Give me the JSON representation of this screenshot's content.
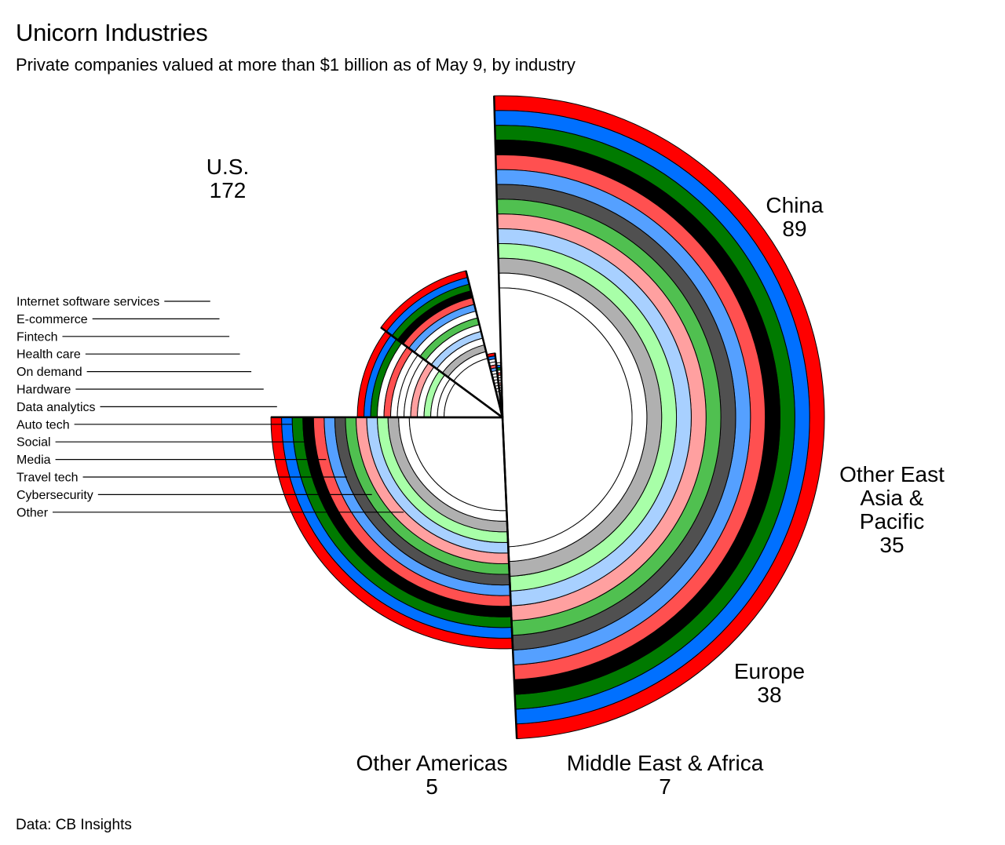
{
  "header": {
    "title": "Unicorn Industries",
    "subtitle": "Private companies valued at more than $1 billion as of May 9, by industry"
  },
  "footer": {
    "source": "Data: CB Insights"
  },
  "colors": {
    "Internet software services": "#ff0000",
    "E-commerce": "#0070ff",
    "Fintech": "#007a00",
    "Health care": "#000000",
    "On demand": "#ff5050",
    "Hardware": "#55a0ff",
    "Data analytics": "#505050",
    "Auto tech": "#50c050",
    "Social": "#ffa0a0",
    "Media": "#a8d0ff",
    "Travel tech": "#a8ffa8",
    "Cybersecurity": "#b0b0b0",
    "Other": "#ffffff"
  },
  "chart_data": {
    "type": "radial-bar",
    "title": "Unicorn Industries",
    "subtitle": "Private companies valued at more than $1 billion as of May 9, by industry",
    "industries": [
      "Internet software services",
      "E-commerce",
      "Fintech",
      "Health care",
      "On demand",
      "Hardware",
      "Data analytics",
      "Auto tech",
      "Social",
      "Media",
      "Travel tech",
      "Cybersecurity",
      "Other"
    ],
    "regions": [
      {
        "name": "U.S.",
        "total": "172",
        "label_lines": [
          "U.S.",
          "172"
        ],
        "values": [
          37,
          11,
          21,
          23,
          5,
          6,
          8,
          11,
          7,
          9,
          5,
          6,
          23
        ]
      },
      {
        "name": "China",
        "total": "89",
        "label_lines": [
          "China",
          "89"
        ],
        "values": [
          13,
          31,
          3,
          6,
          5,
          11,
          10,
          1,
          3,
          3,
          1,
          1,
          1
        ]
      },
      {
        "name": "Other East Asia & Pacific",
        "total": "35",
        "label_lines": [
          "Other East",
          "Asia &",
          "Pacific",
          "35"
        ],
        "values": [
          6,
          9,
          5,
          0,
          8,
          0,
          0,
          0,
          1,
          0,
          6,
          0,
          0
        ]
      },
      {
        "name": "Europe",
        "total": "38",
        "label_lines": [
          "Europe",
          "38"
        ],
        "values": [
          1,
          2,
          11,
          6,
          8,
          2,
          0,
          2,
          0,
          1,
          0,
          1,
          4
        ]
      },
      {
        "name": "Middle East & Africa",
        "total": "7",
        "label_lines": [
          "Middle East & Africa",
          "7"
        ],
        "values": [
          1,
          1,
          0,
          0,
          1,
          1,
          0,
          0,
          0,
          0,
          0,
          0,
          3
        ]
      },
      {
        "name": "Other Americas",
        "total": "5",
        "label_lines": [
          "Other Americas",
          "5"
        ],
        "values": [
          0,
          1,
          1,
          0,
          1,
          0,
          0,
          0,
          1,
          0,
          0,
          0,
          1
        ]
      }
    ],
    "source": "Data: CB Insights"
  }
}
